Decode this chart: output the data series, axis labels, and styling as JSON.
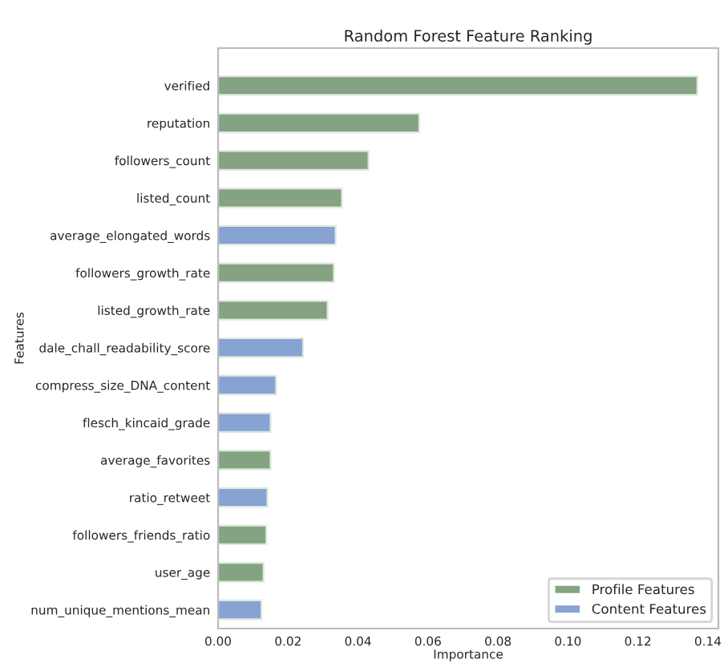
{
  "chart_data": {
    "type": "bar",
    "orientation": "horizontal",
    "title": "Random Forest Feature Ranking",
    "xlabel": "Importance",
    "ylabel": "Features",
    "categories": [
      "verified",
      "reputation",
      "followers_count",
      "listed_count",
      "average_elongated_words",
      "followers_growth_rate",
      "listed_growth_rate",
      "dale_chall_readability_score",
      "compress_size_DNA_content",
      "flesch_kincaid_grade",
      "average_favorites",
      "ratio_retweet",
      "followers_friends_ratio",
      "user_age",
      "num_unique_mentions_mean"
    ],
    "series": [
      {
        "name": "Profile Features",
        "color": "#84a383",
        "values": [
          0.137,
          0.0575,
          0.043,
          0.0354,
          null,
          0.0331,
          0.0313,
          null,
          null,
          null,
          0.015,
          null,
          0.0138,
          0.013,
          null
        ]
      },
      {
        "name": "Content Features",
        "color": "#86a3d3",
        "values": [
          null,
          null,
          null,
          null,
          0.0336,
          null,
          null,
          0.0243,
          0.0166,
          0.015,
          null,
          0.0141,
          null,
          null,
          0.0124
        ]
      }
    ],
    "xlim": [
      0,
      0.143
    ],
    "xticks": [
      {
        "value": 0,
        "label": "0.00"
      },
      {
        "value": 0.02,
        "label": "0.02"
      },
      {
        "value": 0.04,
        "label": "0.04"
      },
      {
        "value": 0.06,
        "label": "0.06"
      },
      {
        "value": 0.08,
        "label": "0.08"
      },
      {
        "value": 0.1,
        "label": "0.10"
      },
      {
        "value": 0.12,
        "label": "0.12"
      },
      {
        "value": 0.14,
        "label": "0.14"
      }
    ],
    "legend": "bottom right",
    "grid": false
  }
}
